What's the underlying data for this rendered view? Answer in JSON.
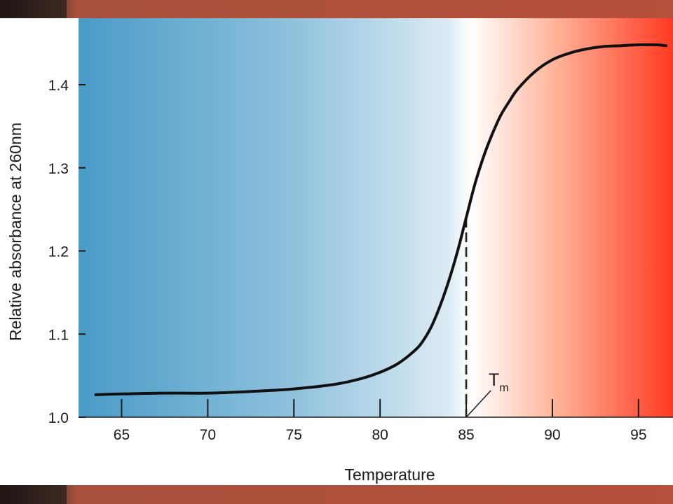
{
  "chart_data": {
    "type": "line",
    "title": "",
    "xlabel": "Temperature",
    "ylabel": "Relative absorbance at 260nm",
    "xlim": [
      62.5,
      97
    ],
    "ylim": [
      1.0,
      1.48
    ],
    "xticks": [
      65,
      70,
      75,
      80,
      85,
      90,
      95
    ],
    "yticks": [
      "1.0",
      "1.1",
      "1.2",
      "1.3",
      "1.4"
    ],
    "grid": false,
    "background_gradient": [
      "#4a9bc7",
      "#ffffff",
      "#ff3a22"
    ],
    "series": [
      {
        "color": "#111111",
        "x": [
          63.5,
          65,
          67.5,
          70,
          72.5,
          75,
          77.5,
          79,
          80,
          81,
          82,
          82.5,
          83,
          83.5,
          84,
          84.5,
          85,
          85.5,
          86,
          86.5,
          87,
          87.5,
          88,
          89,
          90,
          91,
          92,
          93,
          94,
          95,
          96,
          96.6
        ],
        "y": [
          1.027,
          1.028,
          1.029,
          1.029,
          1.031,
          1.034,
          1.04,
          1.047,
          1.054,
          1.064,
          1.08,
          1.092,
          1.11,
          1.135,
          1.165,
          1.2,
          1.24,
          1.28,
          1.313,
          1.34,
          1.363,
          1.38,
          1.395,
          1.416,
          1.43,
          1.438,
          1.443,
          1.446,
          1.447,
          1.448,
          1.448,
          1.447
        ]
      }
    ],
    "annotations": [
      {
        "label": "T",
        "subscript": "m",
        "x": 85,
        "y_from": 1.0,
        "y_to": 1.24
      }
    ]
  }
}
